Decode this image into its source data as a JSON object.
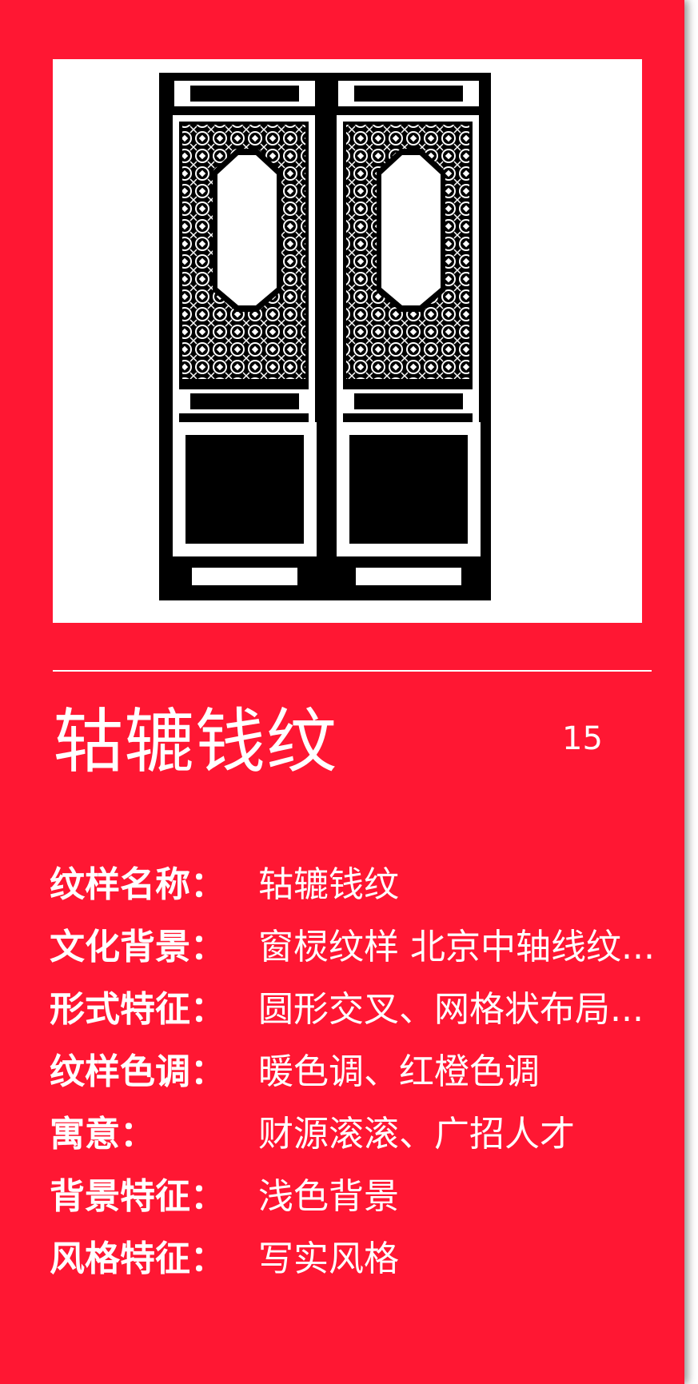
{
  "card": {
    "title": "轱辘钱纹",
    "number": "15",
    "image_icon": "chinese-lattice-double-door-icon",
    "colors": {
      "background": "#ff1733",
      "text": "#ffffff",
      "image_bg": "#ffffff",
      "ink": "#000000"
    }
  },
  "details": [
    {
      "key": "纹样名称：",
      "value": "轱辘钱纹"
    },
    {
      "key": "文化背景：",
      "value": "窗棂纹样  北京中轴线纹..."
    },
    {
      "key": "形式特征：",
      "value": "圆形交叉、网格状布局..."
    },
    {
      "key": "纹样色调：",
      "value": "暖色调、红橙色调"
    },
    {
      "key": "寓意：",
      "value": "财源滚滚、广招人才"
    },
    {
      "key": "背景特征：",
      "value": "浅色背景"
    },
    {
      "key": "风格特征：",
      "value": "写实风格"
    }
  ]
}
